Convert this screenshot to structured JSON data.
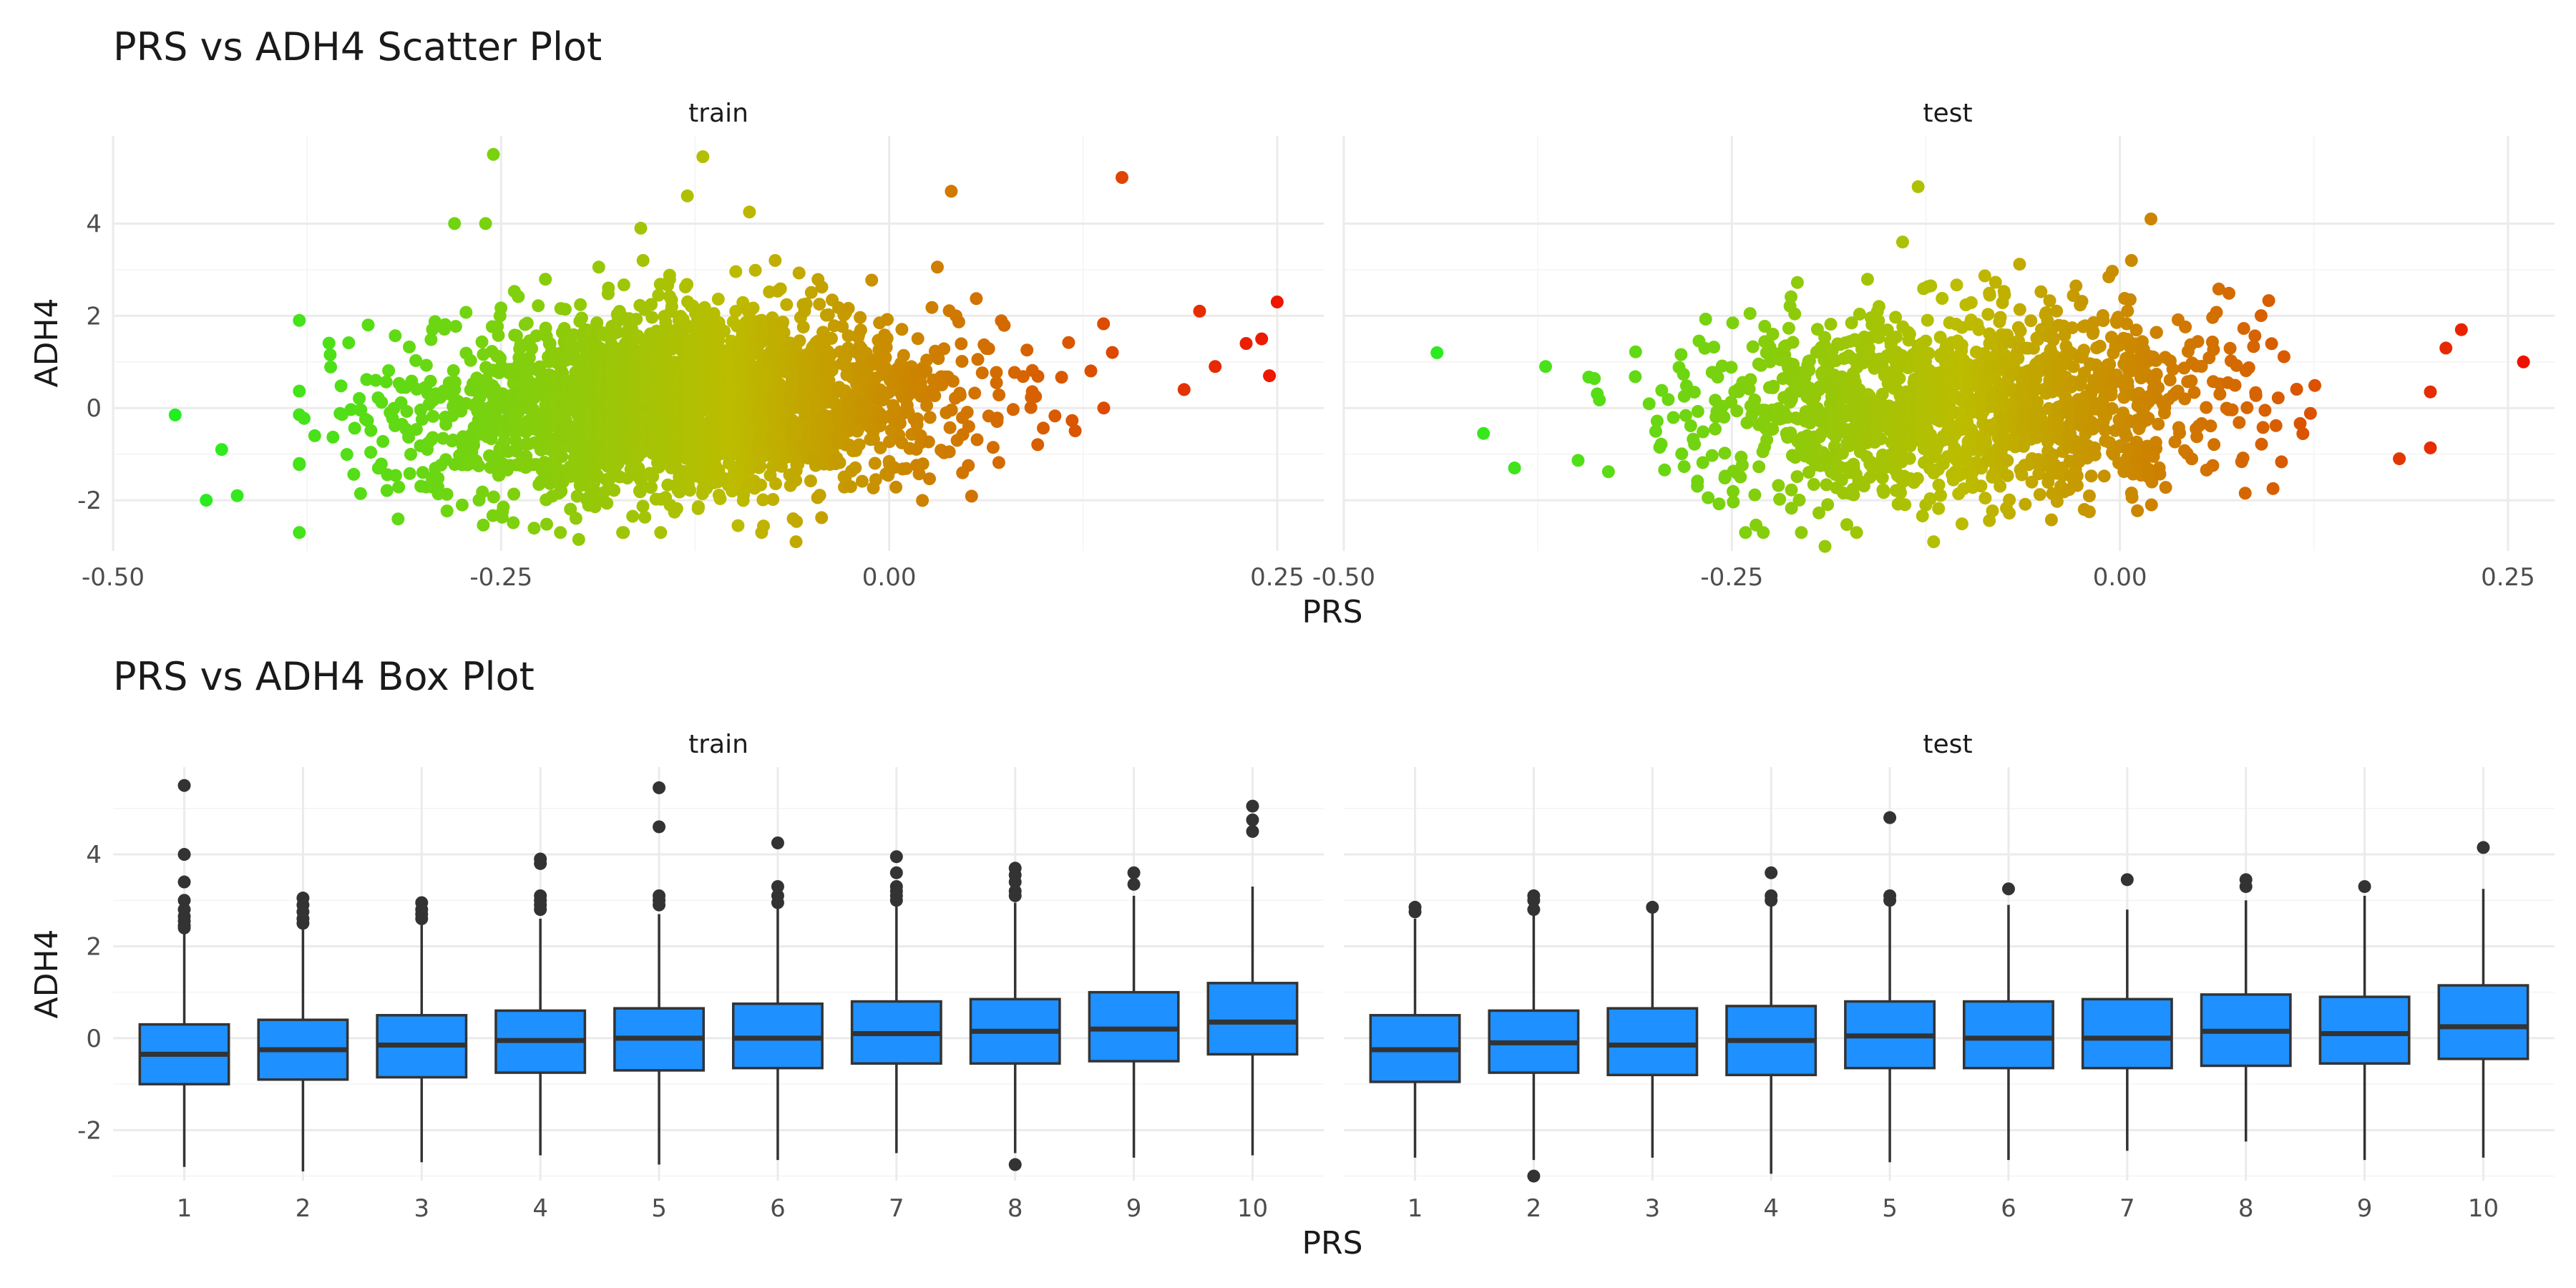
{
  "chart_data": [
    {
      "type": "scatter",
      "title": "PRS vs ADH4 Scatter Plot",
      "xlabel": "PRS",
      "ylabel": "ADH4",
      "facets": [
        "train",
        "test"
      ],
      "xlim": [
        -0.5,
        0.28
      ],
      "ylim": [
        -3.1,
        5.9
      ],
      "xticks": [
        -0.5,
        -0.25,
        0.0,
        0.25
      ],
      "xtick_labels": [
        "-0.50",
        "-0.25",
        "0.00",
        "0.25"
      ],
      "yticks": [
        -2,
        0,
        2,
        4
      ],
      "yticks_labels": [
        "-2",
        "0",
        "2",
        "4"
      ],
      "color_gradient": {
        "low": "#22ee22",
        "mid": "#bcbc00",
        "high": "#ee1100",
        "mapped_to": "PRS"
      },
      "grid": true,
      "legend": "none",
      "panels": [
        {
          "facet": "train",
          "cloud": {
            "n": 2600,
            "x_mean": -0.13,
            "x_sd": 0.085,
            "y_mean": 0.1,
            "y_sd": 1.0
          },
          "notable_points": [
            {
              "x": -0.46,
              "y": -0.15
            },
            {
              "x": -0.44,
              "y": -2.0
            },
            {
              "x": -0.42,
              "y": -1.9
            },
            {
              "x": -0.43,
              "y": -0.9
            },
            {
              "x": -0.38,
              "y": 1.9
            },
            {
              "x": -0.255,
              "y": 5.5
            },
            {
              "x": -0.12,
              "y": 5.45
            },
            {
              "x": -0.13,
              "y": 4.6
            },
            {
              "x": -0.09,
              "y": 4.25
            },
            {
              "x": 0.04,
              "y": 4.7
            },
            {
              "x": 0.15,
              "y": 5.0
            },
            {
              "x": -0.28,
              "y": 4.0
            },
            {
              "x": -0.26,
              "y": 4.0
            },
            {
              "x": -0.16,
              "y": 3.9
            },
            {
              "x": 0.25,
              "y": 2.3
            },
            {
              "x": 0.245,
              "y": 0.7
            },
            {
              "x": 0.24,
              "y": 1.5
            },
            {
              "x": 0.23,
              "y": 1.4
            },
            {
              "x": 0.2,
              "y": 2.1
            },
            {
              "x": 0.21,
              "y": 0.9
            },
            {
              "x": 0.19,
              "y": 0.4
            },
            {
              "x": -0.2,
              "y": -2.85
            },
            {
              "x": -0.06,
              "y": -2.9
            }
          ]
        },
        {
          "facet": "test",
          "cloud": {
            "n": 1500,
            "x_mean": -0.1,
            "x_sd": 0.085,
            "y_mean": 0.1,
            "y_sd": 1.0
          },
          "notable_points": [
            {
              "x": -0.44,
              "y": 1.2
            },
            {
              "x": -0.41,
              "y": -0.55
            },
            {
              "x": -0.39,
              "y": -1.3
            },
            {
              "x": -0.37,
              "y": 0.9
            },
            {
              "x": -0.13,
              "y": 4.8
            },
            {
              "x": 0.02,
              "y": 4.1
            },
            {
              "x": -0.14,
              "y": 3.6
            },
            {
              "x": 0.26,
              "y": 1.0
            },
            {
              "x": 0.22,
              "y": 1.7
            },
            {
              "x": 0.21,
              "y": 1.3
            },
            {
              "x": 0.2,
              "y": 0.35
            },
            {
              "x": 0.18,
              "y": -1.1
            },
            {
              "x": -0.19,
              "y": -3.0
            },
            {
              "x": -0.12,
              "y": -2.9
            }
          ]
        }
      ]
    },
    {
      "type": "box",
      "title": "PRS vs ADH4 Box Plot",
      "xlabel": "PRS",
      "ylabel": "ADH4",
      "facets": [
        "train",
        "test"
      ],
      "categories": [
        "1",
        "2",
        "3",
        "4",
        "5",
        "6",
        "7",
        "8",
        "9",
        "10"
      ],
      "ylim": [
        -3.1,
        5.9
      ],
      "yticks": [
        -2,
        0,
        2,
        4
      ],
      "yticks_labels": [
        "-2",
        "0",
        "2",
        "4"
      ],
      "box_fill": "#1e90ff",
      "box_stroke": "#333333",
      "grid": true,
      "panels": [
        {
          "facet": "train",
          "boxes": [
            {
              "q1": -1.0,
              "median": -0.35,
              "q3": 0.3,
              "lo": -2.8,
              "hi": 2.3,
              "outliers": [
                5.5,
                4.0,
                3.4,
                3.0,
                2.8,
                2.65,
                2.55,
                2.45,
                2.4
              ]
            },
            {
              "q1": -0.9,
              "median": -0.25,
              "q3": 0.4,
              "lo": -2.9,
              "hi": 2.4,
              "outliers": [
                3.05,
                2.9,
                2.75,
                2.6,
                2.5
              ]
            },
            {
              "q1": -0.85,
              "median": -0.15,
              "q3": 0.5,
              "lo": -2.7,
              "hi": 2.5,
              "outliers": [
                2.95,
                2.8,
                2.7,
                2.6
              ]
            },
            {
              "q1": -0.75,
              "median": -0.05,
              "q3": 0.6,
              "lo": -2.55,
              "hi": 2.6,
              "outliers": [
                3.9,
                3.8,
                3.1,
                3.0,
                2.9,
                2.8
              ]
            },
            {
              "q1": -0.7,
              "median": 0.0,
              "q3": 0.65,
              "lo": -2.75,
              "hi": 2.7,
              "outliers": [
                5.45,
                4.6,
                3.1,
                3.0,
                2.9
              ]
            },
            {
              "q1": -0.65,
              "median": 0.0,
              "q3": 0.75,
              "lo": -2.65,
              "hi": 2.9,
              "outliers": [
                4.25,
                3.3,
                3.1,
                2.95
              ]
            },
            {
              "q1": -0.55,
              "median": 0.1,
              "q3": 0.8,
              "lo": -2.5,
              "hi": 2.95,
              "outliers": [
                3.95,
                3.6,
                3.3,
                3.2,
                3.1,
                3.0
              ]
            },
            {
              "q1": -0.55,
              "median": 0.15,
              "q3": 0.85,
              "lo": -2.5,
              "hi": 2.95,
              "outliers": [
                3.7,
                3.55,
                3.4,
                3.2,
                3.1,
                -2.75
              ]
            },
            {
              "q1": -0.5,
              "median": 0.2,
              "q3": 1.0,
              "lo": -2.6,
              "hi": 3.1,
              "outliers": [
                3.6,
                3.35
              ]
            },
            {
              "q1": -0.35,
              "median": 0.35,
              "q3": 1.2,
              "lo": -2.55,
              "hi": 3.3,
              "outliers": [
                5.05,
                4.75,
                4.5
              ]
            }
          ]
        },
        {
          "facet": "test",
          "boxes": [
            {
              "q1": -0.95,
              "median": -0.25,
              "q3": 0.5,
              "lo": -2.6,
              "hi": 2.6,
              "outliers": [
                2.85,
                2.75
              ]
            },
            {
              "q1": -0.75,
              "median": -0.1,
              "q3": 0.6,
              "lo": -2.65,
              "hi": 2.7,
              "outliers": [
                3.1,
                3.0,
                2.8,
                -3.0
              ]
            },
            {
              "q1": -0.8,
              "median": -0.15,
              "q3": 0.65,
              "lo": -2.6,
              "hi": 2.8,
              "outliers": [
                2.85
              ]
            },
            {
              "q1": -0.8,
              "median": -0.05,
              "q3": 0.7,
              "lo": -2.95,
              "hi": 2.9,
              "outliers": [
                3.6,
                3.1,
                3.0
              ]
            },
            {
              "q1": -0.65,
              "median": 0.05,
              "q3": 0.8,
              "lo": -2.7,
              "hi": 2.95,
              "outliers": [
                4.8,
                3.1,
                3.0
              ]
            },
            {
              "q1": -0.65,
              "median": 0.0,
              "q3": 0.8,
              "lo": -2.65,
              "hi": 2.9,
              "outliers": [
                3.25
              ]
            },
            {
              "q1": -0.65,
              "median": 0.0,
              "q3": 0.85,
              "lo": -2.45,
              "hi": 2.8,
              "outliers": [
                3.45
              ]
            },
            {
              "q1": -0.6,
              "median": 0.15,
              "q3": 0.95,
              "lo": -2.25,
              "hi": 3.0,
              "outliers": [
                3.45,
                3.3
              ]
            },
            {
              "q1": -0.55,
              "median": 0.1,
              "q3": 0.9,
              "lo": -2.65,
              "hi": 3.1,
              "outliers": [
                3.3
              ]
            },
            {
              "q1": -0.45,
              "median": 0.25,
              "q3": 1.15,
              "lo": -2.6,
              "hi": 3.25,
              "outliers": [
                4.15
              ]
            }
          ]
        }
      ]
    }
  ]
}
